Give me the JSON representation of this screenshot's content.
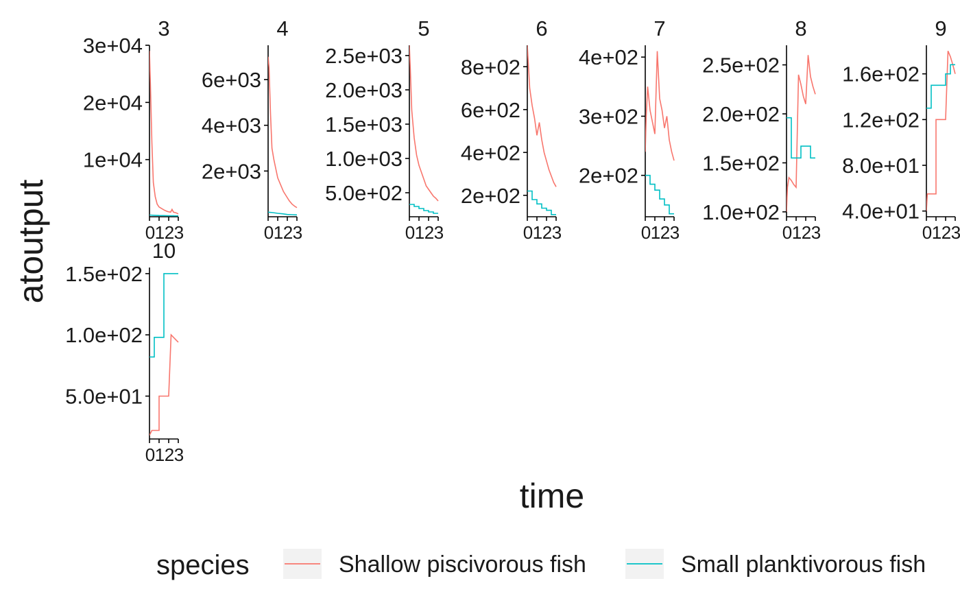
{
  "chart_data": {
    "type": "line",
    "xlabel": "time",
    "ylabel": "atoutput",
    "legend": {
      "title": "species",
      "position": "bottom",
      "entries": [
        {
          "label": "Shallow piscivorous fish",
          "color": "#F8766D"
        },
        {
          "label": "Small planktivorous fish",
          "color": "#00BFC4"
        }
      ]
    },
    "x_ticks": [
      "0",
      "1",
      "2",
      "3"
    ],
    "xlim": [
      0,
      3
    ],
    "facets": [
      {
        "label": "3",
        "ylim": [
          0,
          30000
        ],
        "y_ticks": [
          {
            "v": 10000,
            "t": "1e+04"
          },
          {
            "v": 20000,
            "t": "2e+04"
          },
          {
            "v": 30000,
            "t": "3e+04"
          }
        ],
        "series": [
          {
            "x": [
              0,
              0.1,
              0.25,
              0.4,
              0.6,
              0.8,
              1.0,
              1.3,
              1.6,
              1.9,
              2.2,
              2.35,
              2.5,
              2.75,
              3.0
            ],
            "y": [
              29000,
              23000,
              13000,
              6000,
              3500,
              2200,
              1700,
              1400,
              1100,
              900,
              800,
              1300,
              800,
              700,
              500
            ]
          },
          {
            "x": [
              0,
              0.5,
              1.0,
              1.5,
              2.0,
              2.5,
              3.0
            ],
            "y": [
              300,
              250,
              220,
              200,
              180,
              170,
              160
            ]
          }
        ]
      },
      {
        "label": "4",
        "ylim": [
          0,
          7500
        ],
        "y_ticks": [
          {
            "v": 2000,
            "t": "2e+03"
          },
          {
            "v": 4000,
            "t": "4e+03"
          },
          {
            "v": 6000,
            "t": "6e+03"
          }
        ],
        "series": [
          {
            "x": [
              0,
              0.1,
              0.25,
              0.4,
              0.6,
              0.8,
              1.0,
              1.3,
              1.6,
              1.9,
              2.2,
              2.5,
              2.8,
              3.0
            ],
            "y": [
              7000,
              6500,
              4500,
              3000,
              2500,
              2100,
              1700,
              1400,
              1100,
              900,
              700,
              550,
              450,
              400
            ]
          },
          {
            "x": [
              0,
              0.5,
              1.0,
              1.5,
              2.0,
              2.5,
              3.0
            ],
            "y": [
              200,
              180,
              150,
              130,
              100,
              90,
              80
            ]
          }
        ]
      },
      {
        "label": "5",
        "ylim": [
          150,
          2650
        ],
        "y_ticks": [
          {
            "v": 500,
            "t": "5.0e+02"
          },
          {
            "v": 1000,
            "t": "1.0e+03"
          },
          {
            "v": 1500,
            "t": "1.5e+03"
          },
          {
            "v": 2000,
            "t": "2.0e+03"
          },
          {
            "v": 2500,
            "t": "2.5e+03"
          }
        ],
        "series": [
          {
            "x": [
              0,
              0.1,
              0.25,
              0.5,
              0.75,
              1.0,
              1.25,
              1.5,
              1.75,
              2.0,
              2.25,
              2.5,
              2.75,
              3.0
            ],
            "y": [
              2650,
              2300,
              1700,
              1300,
              1050,
              900,
              800,
              700,
              600,
              550,
              500,
              450,
              420,
              380
            ]
          },
          {
            "x": [
              0,
              0.25,
              0.5,
              0.5,
              1.0,
              1.0,
              1.5,
              1.5,
              2.0,
              2.0,
              2.5,
              2.5,
              3.0
            ],
            "y": [
              330,
              330,
              330,
              300,
              300,
              270,
              270,
              240,
              240,
              220,
              220,
              200,
              200
            ]
          }
        ]
      },
      {
        "label": "6",
        "ylim": [
          100,
          900
        ],
        "y_ticks": [
          {
            "v": 200,
            "t": "2e+02"
          },
          {
            "v": 400,
            "t": "4e+02"
          },
          {
            "v": 600,
            "t": "6e+02"
          },
          {
            "v": 800,
            "t": "8e+02"
          }
        ],
        "series": [
          {
            "x": [
              0,
              0.1,
              0.25,
              0.5,
              0.75,
              1.0,
              1.25,
              1.5,
              1.75,
              2.0,
              2.25,
              2.5,
              2.75,
              3.0
            ],
            "y": [
              900,
              820,
              700,
              620,
              560,
              480,
              540,
              460,
              400,
              360,
              320,
              290,
              260,
              240
            ]
          },
          {
            "x": [
              0,
              0.25,
              0.5,
              0.5,
              1.0,
              1.0,
              1.5,
              1.5,
              2.0,
              2.0,
              2.5,
              2.5,
              3.0
            ],
            "y": [
              220,
              220,
              220,
              180,
              180,
              160,
              160,
              140,
              140,
              130,
              130,
              110,
              110
            ]
          }
        ]
      },
      {
        "label": "7",
        "ylim": [
          130,
          420
        ],
        "y_ticks": [
          {
            "v": 200,
            "t": "2e+02"
          },
          {
            "v": 300,
            "t": "3e+02"
          },
          {
            "v": 400,
            "t": "4e+02"
          }
        ],
        "series": [
          {
            "x": [
              0,
              0.1,
              0.25,
              0.5,
              0.75,
              1.0,
              1.25,
              1.5,
              1.75,
              2.0,
              2.25,
              2.5,
              2.75,
              3.0
            ],
            "y": [
              240,
              300,
              350,
              310,
              290,
              270,
              410,
              330,
              310,
              280,
              300,
              260,
              240,
              225
            ]
          },
          {
            "x": [
              0,
              0.25,
              0.5,
              0.5,
              1.0,
              1.0,
              1.5,
              1.5,
              2.0,
              2.0,
              2.5,
              2.5,
              3.0
            ],
            "y": [
              200,
              200,
              200,
              185,
              185,
              175,
              175,
              160,
              160,
              150,
              150,
              135,
              135
            ]
          }
        ]
      },
      {
        "label": "8",
        "ylim": [
          95,
          270
        ],
        "y_ticks": [
          {
            "v": 100,
            "t": "1.0e+02"
          },
          {
            "v": 150,
            "t": "1.5e+02"
          },
          {
            "v": 200,
            "t": "2.0e+02"
          },
          {
            "v": 250,
            "t": "2.5e+02"
          }
        ],
        "series": [
          {
            "x": [
              0,
              0.1,
              0.25,
              0.5,
              0.75,
              1.0,
              1.25,
              1.5,
              1.75,
              2.0,
              2.25,
              2.5,
              2.75,
              3.0
            ],
            "y": [
              100,
              125,
              135,
              132,
              128,
              125,
              240,
              230,
              218,
              210,
              260,
              238,
              228,
              220
            ]
          },
          {
            "x": [
              0,
              0.25,
              0.5,
              0.5,
              1.0,
              1.0,
              1.5,
              1.5,
              2.0,
              2.0,
              2.5,
              2.5,
              3.0
            ],
            "y": [
              196,
              196,
              196,
              155,
              155,
              155,
              155,
              167,
              167,
              167,
              167,
              155,
              155
            ]
          }
        ]
      },
      {
        "label": "9",
        "ylim": [
          35,
          185
        ],
        "y_ticks": [
          {
            "v": 40,
            "t": "4.0e+01"
          },
          {
            "v": 80,
            "t": "8.0e+01"
          },
          {
            "v": 120,
            "t": "1.2e+02"
          },
          {
            "v": 160,
            "t": "1.6e+02"
          }
        ],
        "series": [
          {
            "x": [
              0,
              0.1,
              0.25,
              0.5,
              0.75,
              1.0,
              1.0,
              1.25,
              1.5,
              1.75,
              2.0,
              2.25,
              2.5,
              2.75,
              3.0
            ],
            "y": [
              40,
              55,
              55,
              55,
              55,
              55,
              120,
              120,
              120,
              120,
              120,
              180,
              175,
              168,
              160
            ]
          },
          {
            "x": [
              0,
              0.25,
              0.5,
              0.5,
              1.0,
              1.0,
              1.5,
              1.5,
              2.0,
              2.0,
              2.5,
              2.5,
              3.0
            ],
            "y": [
              130,
              130,
              130,
              150,
              150,
              150,
              150,
              150,
              150,
              160,
              160,
              168,
              168
            ]
          }
        ]
      },
      {
        "label": "10",
        "ylim": [
          15,
          155
        ],
        "y_ticks": [
          {
            "v": 50,
            "t": "5.0e+01"
          },
          {
            "v": 100,
            "t": "1.0e+02"
          },
          {
            "v": 150,
            "t": "1.5e+02"
          }
        ],
        "series": [
          {
            "x": [
              0,
              0.25,
              0.5,
              1.0,
              1.0,
              1.5,
              1.75,
              2.0,
              2.25,
              2.5,
              2.75,
              3.0
            ],
            "y": [
              18,
              22,
              22,
              22,
              50,
              50,
              50,
              50,
              100,
              98,
              96,
              94
            ]
          },
          {
            "x": [
              0,
              0.25,
              0.5,
              0.5,
              1.0,
              1.5,
              1.5,
              2.0,
              2.5,
              3.0
            ],
            "y": [
              82,
              82,
              82,
              98,
              98,
              98,
              150,
              150,
              150,
              150
            ]
          }
        ]
      }
    ]
  }
}
